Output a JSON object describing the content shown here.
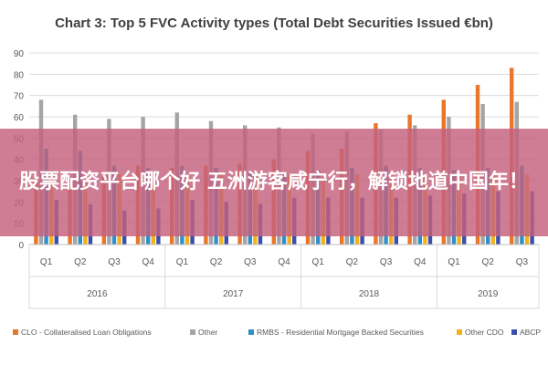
{
  "chart_data": {
    "type": "bar",
    "title": "Chart 3: Top 5 FVC Activity types (Total Debt Securities Issued €bn)",
    "xlabel": "",
    "ylabel": "",
    "ylim": [
      0,
      90
    ],
    "yticks": [
      0,
      10,
      20,
      30,
      40,
      50,
      60,
      70,
      80,
      90
    ],
    "grid": true,
    "legend_position": "bottom",
    "categories": [
      "Q1",
      "Q2",
      "Q3",
      "Q4",
      "Q1",
      "Q2",
      "Q3",
      "Q4",
      "Q1",
      "Q2",
      "Q3",
      "Q4",
      "Q1",
      "Q2",
      "Q3"
    ],
    "year_groups": [
      {
        "label": "2016",
        "count": 4
      },
      {
        "label": "2017",
        "count": 4
      },
      {
        "label": "2018",
        "count": 4
      },
      {
        "label": "2019",
        "count": 3
      }
    ],
    "series": [
      {
        "name": "CLO - Collateralised Loan Obligations",
        "color": "#e8762b",
        "values": [
          30,
          31,
          32,
          37,
          36,
          37,
          38,
          40,
          44,
          45,
          57,
          61,
          68,
          75,
          83
        ]
      },
      {
        "name": "Other",
        "color": "#a5a5a5",
        "values": [
          68,
          61,
          59,
          60,
          62,
          58,
          56,
          55,
          52,
          53,
          54,
          56,
          60,
          66,
          67
        ]
      },
      {
        "name": "RMBS - Residential Mortgage Backed Securities",
        "color": "#2f8fc9",
        "values": [
          45,
          44,
          37,
          36,
          37,
          36,
          34,
          33,
          35,
          36,
          37,
          36,
          35,
          36,
          37
        ]
      },
      {
        "name": "Other CDO",
        "color": "#f2b21c",
        "values": [
          35,
          34,
          33,
          33,
          33,
          33,
          33,
          33,
          32,
          33,
          33,
          33,
          33,
          33,
          33
        ]
      },
      {
        "name": "ABCP",
        "color": "#3b4eaa",
        "values": [
          21,
          19,
          16,
          17,
          21,
          20,
          19,
          22,
          22,
          22,
          22,
          23,
          24,
          25,
          25
        ]
      }
    ]
  },
  "overlay": {
    "text": "股票配资平台哪个好 五洲游客咸宁行，解锁地道中国年！"
  }
}
